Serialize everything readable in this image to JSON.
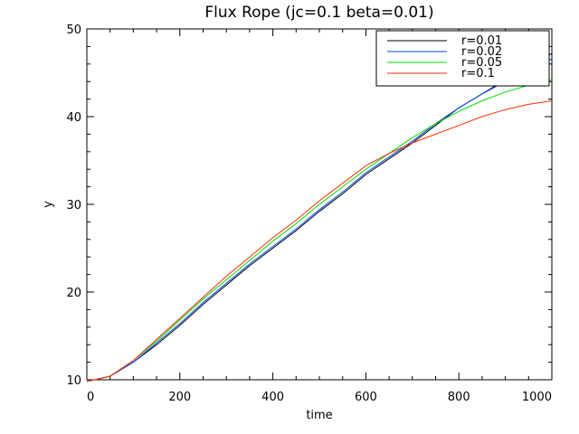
{
  "chart_data": {
    "type": "line",
    "title": "Flux Rope (jc=0.1 beta=0.01)",
    "xlabel": "time",
    "ylabel": "y",
    "xlim": [
      0,
      1000
    ],
    "ylim": [
      10,
      50
    ],
    "xticks": [
      "0",
      "200",
      "400",
      "600",
      "800",
      "1000"
    ],
    "yticks": [
      "10",
      "20",
      "30",
      "40",
      "50"
    ],
    "grid": false,
    "legend_position": "top-right",
    "series": [
      {
        "name": "r=0.01",
        "color": "#000000",
        "x": [
          0,
          50,
          100,
          150,
          200,
          250,
          300,
          350,
          400,
          450,
          500,
          550,
          600,
          650,
          700,
          750,
          800,
          850,
          900,
          950,
          1000
        ],
        "y": [
          9.8,
          10.4,
          12.0,
          14.0,
          16.2,
          18.6,
          20.8,
          23.0,
          25.0,
          27.0,
          29.2,
          31.2,
          33.4,
          35.2,
          37.0,
          39.0,
          41.0,
          42.6,
          44.2,
          45.8,
          47.2
        ]
      },
      {
        "name": "r=0.02",
        "color": "#0047ff",
        "x": [
          0,
          50,
          100,
          150,
          200,
          250,
          300,
          350,
          400,
          450,
          500,
          550,
          600,
          650,
          700,
          750,
          800,
          850,
          900,
          950,
          1000
        ],
        "y": [
          9.8,
          10.4,
          12.0,
          14.2,
          16.4,
          18.8,
          21.0,
          23.2,
          25.2,
          27.2,
          29.4,
          31.4,
          33.6,
          35.4,
          37.2,
          39.2,
          41.0,
          42.6,
          44.0,
          45.4,
          46.6
        ]
      },
      {
        "name": "r=0.05",
        "color": "#00e000",
        "x": [
          0,
          50,
          100,
          150,
          200,
          250,
          300,
          350,
          400,
          450,
          500,
          550,
          600,
          650,
          700,
          750,
          800,
          850,
          900,
          950,
          1000
        ],
        "y": [
          9.8,
          10.4,
          12.2,
          14.4,
          16.8,
          19.2,
          21.4,
          23.6,
          25.8,
          27.8,
          30.0,
          32.0,
          34.0,
          35.8,
          37.6,
          39.2,
          40.6,
          41.8,
          42.8,
          43.6,
          44.2
        ]
      },
      {
        "name": "r=0.1",
        "color": "#ff2a00",
        "x": [
          0,
          50,
          100,
          150,
          200,
          250,
          300,
          350,
          400,
          450,
          500,
          550,
          600,
          650,
          700,
          750,
          800,
          850,
          900,
          950,
          1000
        ],
        "y": [
          9.8,
          10.4,
          12.2,
          14.6,
          17.0,
          19.4,
          21.8,
          24.0,
          26.2,
          28.2,
          30.4,
          32.4,
          34.4,
          35.8,
          37.0,
          38.0,
          39.0,
          40.0,
          40.8,
          41.4,
          41.8
        ]
      }
    ]
  }
}
